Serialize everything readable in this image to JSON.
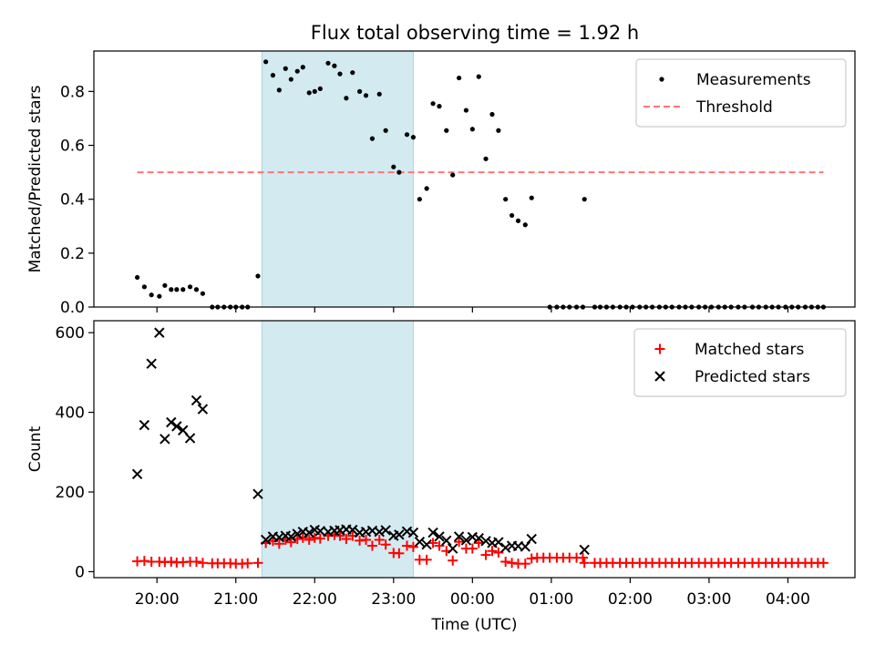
{
  "title": "Flux total observing time = 1.92 h",
  "chart_data": [
    {
      "type": "scatter",
      "ylabel": "Matched/Predicted stars",
      "xlabel": "",
      "ylim": [
        0,
        0.95
      ],
      "yticks": [
        0.0,
        0.2,
        0.4,
        0.6,
        0.8
      ],
      "ytick_labels": [
        "0.0",
        "0.2",
        "0.4",
        "0.6",
        "0.8"
      ],
      "legend_position": "top-right",
      "highlight_span": {
        "start": 21.33,
        "end": 23.25,
        "color": "#d3eaf0"
      },
      "threshold": {
        "name": "Threshold",
        "value": 0.5,
        "x_start": 19.75,
        "x_end": 28.45,
        "color": "#ff7575",
        "style": "dashed"
      },
      "series": [
        {
          "name": "Measurements",
          "color": "#000000",
          "marker": "dot",
          "points": [
            [
              19.75,
              0.11
            ],
            [
              19.84,
              0.075
            ],
            [
              19.93,
              0.045
            ],
            [
              20.03,
              0.04
            ],
            [
              20.1,
              0.08
            ],
            [
              20.18,
              0.065
            ],
            [
              20.25,
              0.065
            ],
            [
              20.33,
              0.065
            ],
            [
              20.42,
              0.075
            ],
            [
              20.5,
              0.065
            ],
            [
              20.58,
              0.05
            ],
            [
              20.7,
              0.0
            ],
            [
              20.77,
              0.0
            ],
            [
              20.85,
              0.0
            ],
            [
              20.93,
              0.0
            ],
            [
              21.0,
              0.0
            ],
            [
              21.08,
              0.0
            ],
            [
              21.15,
              0.0
            ],
            [
              21.28,
              0.115
            ],
            [
              21.38,
              0.91
            ],
            [
              21.47,
              0.86
            ],
            [
              21.55,
              0.805
            ],
            [
              21.63,
              0.885
            ],
            [
              21.7,
              0.845
            ],
            [
              21.78,
              0.875
            ],
            [
              21.85,
              0.89
            ],
            [
              21.93,
              0.795
            ],
            [
              22.0,
              0.8
            ],
            [
              22.07,
              0.81
            ],
            [
              22.17,
              0.905
            ],
            [
              22.25,
              0.895
            ],
            [
              22.32,
              0.865
            ],
            [
              22.4,
              0.775
            ],
            [
              22.48,
              0.87
            ],
            [
              22.57,
              0.8
            ],
            [
              22.65,
              0.785
            ],
            [
              22.73,
              0.625
            ],
            [
              22.82,
              0.79
            ],
            [
              22.9,
              0.655
            ],
            [
              23.0,
              0.52
            ],
            [
              23.07,
              0.5
            ],
            [
              23.17,
              0.64
            ],
            [
              23.25,
              0.63
            ],
            [
              23.33,
              0.4
            ],
            [
              23.42,
              0.44
            ],
            [
              23.5,
              0.755
            ],
            [
              23.58,
              0.745
            ],
            [
              23.67,
              0.655
            ],
            [
              23.75,
              0.49
            ],
            [
              23.83,
              0.85
            ],
            [
              23.92,
              0.73
            ],
            [
              24.0,
              0.66
            ],
            [
              24.08,
              0.855
            ],
            [
              24.17,
              0.55
            ],
            [
              24.25,
              0.715
            ],
            [
              24.33,
              0.655
            ],
            [
              24.42,
              0.4
            ],
            [
              24.5,
              0.34
            ],
            [
              24.58,
              0.32
            ],
            [
              24.67,
              0.305
            ],
            [
              24.75,
              0.405
            ],
            [
              24.98,
              0.0
            ],
            [
              25.07,
              0.0
            ],
            [
              25.15,
              0.0
            ],
            [
              25.23,
              0.0
            ],
            [
              25.32,
              0.0
            ],
            [
              25.4,
              0.0
            ],
            [
              25.42,
              0.4
            ],
            [
              25.55,
              0.0
            ],
            [
              25.62,
              0.0
            ],
            [
              25.7,
              0.0
            ],
            [
              25.78,
              0.0
            ],
            [
              25.87,
              0.0
            ],
            [
              25.95,
              0.0
            ],
            [
              26.03,
              0.0
            ],
            [
              26.12,
              0.0
            ],
            [
              26.2,
              0.0
            ],
            [
              26.28,
              0.0
            ],
            [
              26.37,
              0.0
            ],
            [
              26.45,
              0.0
            ],
            [
              26.53,
              0.0
            ],
            [
              26.62,
              0.0
            ],
            [
              26.7,
              0.0
            ],
            [
              26.78,
              0.0
            ],
            [
              26.87,
              0.0
            ],
            [
              26.95,
              0.0
            ],
            [
              27.03,
              0.0
            ],
            [
              27.12,
              0.0
            ],
            [
              27.2,
              0.0
            ],
            [
              27.28,
              0.0
            ],
            [
              27.37,
              0.0
            ],
            [
              27.45,
              0.0
            ],
            [
              27.55,
              0.0
            ],
            [
              27.63,
              0.0
            ],
            [
              27.72,
              0.0
            ],
            [
              27.8,
              0.0
            ],
            [
              27.88,
              0.0
            ],
            [
              27.97,
              0.0
            ],
            [
              28.05,
              0.0
            ],
            [
              28.13,
              0.0
            ],
            [
              28.22,
              0.0
            ],
            [
              28.3,
              0.0
            ],
            [
              28.38,
              0.0
            ],
            [
              28.45,
              0.0
            ]
          ]
        }
      ]
    },
    {
      "type": "scatter",
      "ylabel": "Count",
      "xlabel": "Time (UTC)",
      "ylim": [
        -15,
        630
      ],
      "yticks": [
        0,
        200,
        400,
        600
      ],
      "ytick_labels": [
        "0",
        "200",
        "400",
        "600"
      ],
      "xlim": [
        19.2,
        28.85
      ],
      "xticks": [
        20,
        21,
        22,
        23,
        24,
        25,
        26,
        27,
        28
      ],
      "xtick_labels": [
        "20:00",
        "21:00",
        "22:00",
        "23:00",
        "00:00",
        "01:00",
        "02:00",
        "03:00",
        "04:00"
      ],
      "legend_position": "top-right",
      "highlight_span": {
        "start": 21.33,
        "end": 23.25,
        "color": "#d3eaf0"
      },
      "series": [
        {
          "name": "Matched stars",
          "color": "#ff0000",
          "marker": "plus",
          "points": [
            [
              19.75,
              26
            ],
            [
              19.84,
              27
            ],
            [
              19.93,
              25
            ],
            [
              20.03,
              25
            ],
            [
              20.1,
              24
            ],
            [
              20.18,
              25
            ],
            [
              20.25,
              23
            ],
            [
              20.33,
              24
            ],
            [
              20.42,
              25
            ],
            [
              20.5,
              25
            ],
            [
              20.58,
              22
            ],
            [
              20.7,
              21
            ],
            [
              20.77,
              21
            ],
            [
              20.85,
              21
            ],
            [
              20.93,
              21
            ],
            [
              21.0,
              20
            ],
            [
              21.08,
              20
            ],
            [
              21.15,
              21
            ],
            [
              21.28,
              22
            ],
            [
              21.38,
              72
            ],
            [
              21.47,
              77
            ],
            [
              21.55,
              70
            ],
            [
              21.63,
              80
            ],
            [
              21.7,
              74
            ],
            [
              21.78,
              82
            ],
            [
              21.85,
              85
            ],
            [
              21.93,
              80
            ],
            [
              22.0,
              85
            ],
            [
              22.07,
              83
            ],
            [
              22.17,
              90
            ],
            [
              22.25,
              92
            ],
            [
              22.32,
              90
            ],
            [
              22.4,
              82
            ],
            [
              22.48,
              90
            ],
            [
              22.57,
              78
            ],
            [
              22.65,
              80
            ],
            [
              22.73,
              65
            ],
            [
              22.82,
              80
            ],
            [
              22.9,
              68
            ],
            [
              23.0,
              47
            ],
            [
              23.07,
              46
            ],
            [
              23.17,
              65
            ],
            [
              23.25,
              62
            ],
            [
              23.33,
              30
            ],
            [
              23.42,
              30
            ],
            [
              23.5,
              72
            ],
            [
              23.58,
              65
            ],
            [
              23.67,
              52
            ],
            [
              23.75,
              28
            ],
            [
              23.83,
              75
            ],
            [
              23.92,
              58
            ],
            [
              24.0,
              58
            ],
            [
              24.08,
              72
            ],
            [
              24.17,
              42
            ],
            [
              24.25,
              52
            ],
            [
              24.33,
              48
            ],
            [
              24.42,
              25
            ],
            [
              24.5,
              22
            ],
            [
              24.58,
              20
            ],
            [
              24.67,
              20
            ],
            [
              24.75,
              33
            ],
            [
              24.82,
              35
            ],
            [
              24.9,
              35
            ],
            [
              24.98,
              35
            ],
            [
              25.07,
              35
            ],
            [
              25.15,
              35
            ],
            [
              25.23,
              35
            ],
            [
              25.32,
              35
            ],
            [
              25.4,
              35
            ],
            [
              25.42,
              22
            ],
            [
              25.55,
              22
            ],
            [
              25.62,
              22
            ],
            [
              25.7,
              22
            ],
            [
              25.78,
              22
            ],
            [
              25.87,
              22
            ],
            [
              25.95,
              22
            ],
            [
              26.03,
              22
            ],
            [
              26.12,
              22
            ],
            [
              26.2,
              22
            ],
            [
              26.28,
              22
            ],
            [
              26.37,
              22
            ],
            [
              26.45,
              22
            ],
            [
              26.53,
              22
            ],
            [
              26.62,
              22
            ],
            [
              26.7,
              22
            ],
            [
              26.78,
              22
            ],
            [
              26.87,
              22
            ],
            [
              26.95,
              22
            ],
            [
              27.03,
              22
            ],
            [
              27.12,
              22
            ],
            [
              27.2,
              22
            ],
            [
              27.28,
              22
            ],
            [
              27.37,
              22
            ],
            [
              27.45,
              22
            ],
            [
              27.55,
              22
            ],
            [
              27.63,
              22
            ],
            [
              27.72,
              22
            ],
            [
              27.8,
              22
            ],
            [
              27.88,
              22
            ],
            [
              27.97,
              22
            ],
            [
              28.05,
              22
            ],
            [
              28.13,
              22
            ],
            [
              28.22,
              22
            ],
            [
              28.3,
              22
            ],
            [
              28.38,
              22
            ],
            [
              28.45,
              22
            ]
          ]
        },
        {
          "name": "Predicted stars",
          "color": "#000000",
          "marker": "x",
          "points": [
            [
              19.75,
              245
            ],
            [
              19.84,
              368
            ],
            [
              19.93,
              522
            ],
            [
              20.03,
              600
            ],
            [
              20.1,
              333
            ],
            [
              20.18,
              375
            ],
            [
              20.25,
              365
            ],
            [
              20.33,
              355
            ],
            [
              20.42,
              335
            ],
            [
              20.5,
              430
            ],
            [
              20.58,
              408
            ],
            [
              21.28,
              195
            ],
            [
              21.38,
              80
            ],
            [
              21.47,
              88
            ],
            [
              21.55,
              86
            ],
            [
              21.63,
              90
            ],
            [
              21.7,
              88
            ],
            [
              21.78,
              95
            ],
            [
              21.85,
              100
            ],
            [
              21.93,
              98
            ],
            [
              22.0,
              105
            ],
            [
              22.07,
              102
            ],
            [
              22.17,
              100
            ],
            [
              22.25,
              103
            ],
            [
              22.32,
              104
            ],
            [
              22.4,
              106
            ],
            [
              22.48,
              105
            ],
            [
              22.57,
              98
            ],
            [
              22.65,
              100
            ],
            [
              22.73,
              103
            ],
            [
              22.82,
              100
            ],
            [
              22.9,
              104
            ],
            [
              23.0,
              90
            ],
            [
              23.07,
              93
            ],
            [
              23.17,
              101
            ],
            [
              23.25,
              98
            ],
            [
              23.33,
              75
            ],
            [
              23.42,
              68
            ],
            [
              23.5,
              98
            ],
            [
              23.58,
              88
            ],
            [
              23.67,
              78
            ],
            [
              23.75,
              58
            ],
            [
              23.83,
              88
            ],
            [
              23.92,
              79
            ],
            [
              24.0,
              87
            ],
            [
              24.08,
              84
            ],
            [
              24.17,
              77
            ],
            [
              24.25,
              72
            ],
            [
              24.33,
              74
            ],
            [
              24.42,
              60
            ],
            [
              24.5,
              65
            ],
            [
              24.58,
              64
            ],
            [
              24.67,
              63
            ],
            [
              24.75,
              82
            ],
            [
              25.42,
              55
            ]
          ]
        }
      ]
    }
  ]
}
